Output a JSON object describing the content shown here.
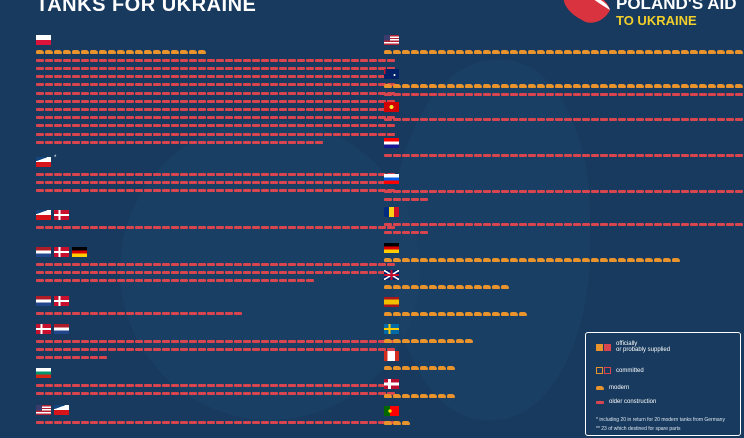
{
  "title": "TANKS FOR UKRAINE",
  "logo": {
    "line1": "POLAND'S AID",
    "line2": "TO UKRAINE"
  },
  "colors": {
    "background": "#173a5e",
    "modern": "#e8932c",
    "older": "#d8454f",
    "yellow": "#f2cf2a"
  },
  "legend": {
    "supplied": "officially\nor probably supplied",
    "committed": "committed",
    "modern": "modern",
    "older": "older construction",
    "note1": "* including 20 in return for 20 modern tanks from Germany",
    "note2": "** 23 of which destined for spare parts"
  },
  "left_groups": [
    {
      "flags": [
        "poland"
      ],
      "note": "",
      "rows": [
        {
          "modern": 19,
          "older": 0
        },
        {
          "modern": 0,
          "older": 40
        },
        {
          "modern": 0,
          "older": 40
        },
        {
          "modern": 0,
          "older": 40
        },
        {
          "modern": 0,
          "older": 40
        },
        {
          "modern": 0,
          "older": 40
        },
        {
          "modern": 0,
          "older": 40
        },
        {
          "modern": 0,
          "older": 40
        },
        {
          "modern": 0,
          "older": 40
        },
        {
          "modern": 0,
          "older": 40
        },
        {
          "modern": 0,
          "older": 40
        },
        {
          "modern": 0,
          "older": 32
        }
      ]
    },
    {
      "flags": [
        "czech"
      ],
      "note": "*",
      "rows": [
        {
          "modern": 0,
          "older": 40
        },
        {
          "modern": 0,
          "older": 40
        },
        {
          "modern": 0,
          "older": 40
        }
      ]
    },
    {
      "flags": [
        "czech",
        "denmark"
      ],
      "note": "",
      "rows": [
        {
          "modern": 0,
          "older": 40
        }
      ]
    },
    {
      "flags": [
        "netherlands",
        "denmark",
        "germany"
      ],
      "note": "",
      "rows": [
        {
          "modern": 0,
          "older": 40
        },
        {
          "modern": 0,
          "older": 40
        },
        {
          "modern": 0,
          "older": 31
        }
      ]
    },
    {
      "flags": [
        "netherlands",
        "denmark"
      ],
      "note": "",
      "rows": [
        {
          "modern": 0,
          "older": 23
        }
      ]
    },
    {
      "flags": [
        "denmark",
        "netherlands"
      ],
      "note": "",
      "rows": [
        {
          "modern": 0,
          "older": 40
        },
        {
          "modern": 0,
          "older": 40
        },
        {
          "modern": 0,
          "older": 8
        }
      ]
    },
    {
      "flags": [
        "bulgaria"
      ],
      "note": "",
      "rows": [
        {
          "modern": 0,
          "older": 40
        },
        {
          "modern": 0,
          "older": 40
        }
      ]
    },
    {
      "flags": [
        "usa",
        "czech"
      ],
      "note": "",
      "rows": [
        {
          "modern": 0,
          "older": 40
        }
      ]
    }
  ],
  "right_groups": [
    {
      "flags": [
        "usa"
      ],
      "rows": [
        {
          "modern": 40,
          "older": 0
        }
      ]
    },
    {
      "flags": [
        "australia"
      ],
      "rows": [
        {
          "modern": 40,
          "older": 0
        },
        {
          "modern": 0,
          "older": 40
        }
      ]
    },
    {
      "flags": [
        "north-macedonia"
      ],
      "rows": [
        {
          "modern": 0,
          "older": 40
        }
      ]
    },
    {
      "flags": [
        "croatia"
      ],
      "rows": [
        {
          "modern": 0,
          "older": 40
        }
      ]
    },
    {
      "flags": [
        "slovenia"
      ],
      "rows": [
        {
          "modern": 0,
          "older": 40
        },
        {
          "modern": 0,
          "older": 5
        }
      ]
    },
    {
      "flags": [
        "romania"
      ],
      "rows": [
        {
          "modern": 0,
          "older": 40
        },
        {
          "modern": 0,
          "older": 5
        }
      ]
    },
    {
      "flags": [
        "germany"
      ],
      "rows": [
        {
          "modern": 33,
          "older": 0
        }
      ]
    },
    {
      "flags": [
        "uk"
      ],
      "rows": [
        {
          "modern": 14,
          "older": 0
        }
      ]
    },
    {
      "flags": [
        "spain"
      ],
      "rows": [
        {
          "modern": 16,
          "older": 0
        }
      ]
    },
    {
      "flags": [
        "sweden"
      ],
      "rows": [
        {
          "modern": 10,
          "older": 0
        }
      ]
    },
    {
      "flags": [
        "canada"
      ],
      "rows": [
        {
          "modern": 8,
          "older": 0
        }
      ]
    },
    {
      "flags": [
        "norway"
      ],
      "rows": [
        {
          "modern": 8,
          "older": 0
        }
      ]
    },
    {
      "flags": [
        "portugal"
      ],
      "rows": [
        {
          "modern": 3,
          "older": 0
        }
      ]
    }
  ]
}
